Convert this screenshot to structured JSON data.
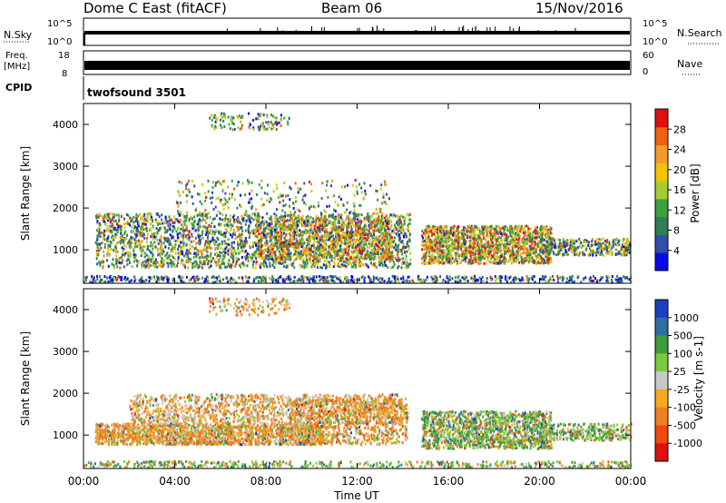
{
  "header": {
    "title": "Dome C East (fitACF)",
    "beam": "Beam 06",
    "date": "15/Nov/2016"
  },
  "status_panels": {
    "nsky_label": "N.Sky",
    "nsky_ticks": [
      "10^5",
      "10^0"
    ],
    "nsearch_label": "N.Search",
    "nsearch_ticks": [
      "10^5",
      "10^0"
    ],
    "freq_label_1": "Freq.",
    "freq_label_2": "[MHz]",
    "freq_ticks": [
      "18",
      "8"
    ],
    "nave_label": "Nave",
    "nave_ticks": [
      "60",
      "0"
    ],
    "cpid_label": "CPID",
    "cpid_value": "twofsound 3501"
  },
  "colors": {
    "power_scale": [
      "#0a0ae6",
      "#2f4fa8",
      "#2f7f55",
      "#3aa040",
      "#a8cc30",
      "#f0c400",
      "#f39a2a",
      "#f06010",
      "#e01010"
    ],
    "velocity_scale": [
      "#e01010",
      "#f04a10",
      "#f08020",
      "#f5a820",
      "#c8c8c8",
      "#7acb3c",
      "#3f9a3f",
      "#2f6fa0",
      "#1e3fc0"
    ]
  },
  "chart_data": [
    {
      "type": "heatmap",
      "name": "power",
      "xlabel": "",
      "ylabel": "Slant Range [km]",
      "yticks": [
        "1000",
        "2000",
        "3000",
        "4000"
      ],
      "ylim": [
        200,
        4500
      ],
      "colorbar_label": "Power [dB]",
      "colorbar_ticks": [
        "4",
        "8",
        "12",
        "16",
        "20",
        "24",
        "28"
      ],
      "colorbar_range": [
        0,
        30
      ]
    },
    {
      "type": "heatmap",
      "name": "velocity",
      "xlabel": "Time UT",
      "ylabel": "Slant Range [km]",
      "yticks": [
        "1000",
        "2000",
        "3000",
        "4000"
      ],
      "ylim": [
        200,
        4500
      ],
      "xticks": [
        "00:00",
        "04:00",
        "08:00",
        "12:00",
        "16:00",
        "20:00",
        "00:00"
      ],
      "xlim_hours": [
        0,
        24
      ],
      "colorbar_label": "Velocity [m s-1]",
      "colorbar_ticks": [
        "1000",
        "500",
        "100",
        "25",
        "-25",
        "-100",
        "-500",
        "-1000"
      ]
    }
  ]
}
